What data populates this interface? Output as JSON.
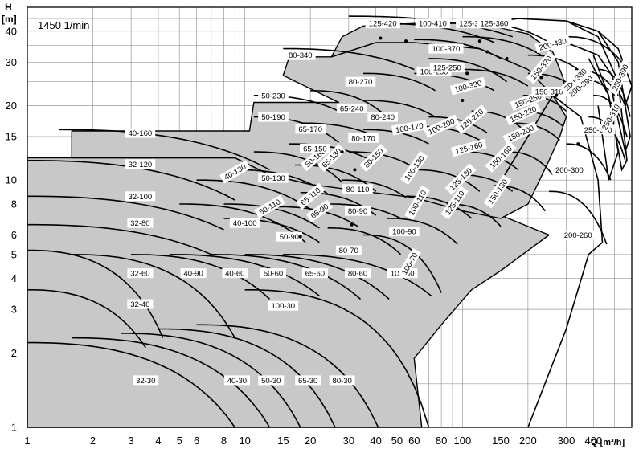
{
  "speed_label": "1450 1/min",
  "y_axis_title_1": "H",
  "y_axis_title_2": "[m]",
  "x_axis_title": "Q [m³/h]",
  "chart_data": {
    "type": "area",
    "title": "",
    "speed": "1450 1/min",
    "xlabel": "Q [m³/h]",
    "ylabel": "H [m]",
    "x_scale": "log",
    "y_scale": "log",
    "xlim": [
      1,
      600
    ],
    "ylim": [
      1,
      50
    ],
    "grid": true,
    "x_ticks": [
      1,
      2,
      3,
      4,
      5,
      6,
      8,
      10,
      15,
      20,
      30,
      40,
      50,
      60,
      80,
      100,
      150,
      200,
      300,
      400
    ],
    "x_tick_labels": [
      "1",
      "2",
      "3",
      "4",
      "5",
      "6",
      "8",
      "10",
      "15",
      "20",
      "30",
      "40",
      "50",
      "60",
      "80",
      "100",
      "150",
      "200",
      "300",
      "400"
    ],
    "y_ticks": [
      1,
      2,
      3,
      4,
      5,
      6,
      8,
      10,
      15,
      20,
      30,
      40
    ],
    "y_tick_labels": [
      "1",
      "2",
      "3",
      "4",
      "5",
      "6",
      "8",
      "10",
      "15",
      "20",
      "30",
      "40"
    ],
    "series": [
      {
        "name": "32-30",
        "q_range": [
          1,
          9
        ],
        "h_range": [
          1,
          2.2
        ]
      },
      {
        "name": "40-30",
        "q_range": [
          1.6,
          13
        ],
        "h_range": [
          1,
          2.3
        ]
      },
      {
        "name": "50-30",
        "q_range": [
          2.7,
          18
        ],
        "h_range": [
          1,
          2.4
        ]
      },
      {
        "name": "65-30",
        "q_range": [
          4,
          26
        ],
        "h_range": [
          1,
          2.5
        ]
      },
      {
        "name": "80-30",
        "q_range": [
          6,
          41
        ],
        "h_range": [
          1,
          2.6
        ]
      },
      {
        "name": "100-30",
        "q_range": [
          10,
          70
        ],
        "h_range": [
          1,
          3.6
        ]
      },
      {
        "name": "32-40",
        "q_range": [
          1,
          3.5
        ],
        "h_range": [
          2.1,
          3.6
        ]
      },
      {
        "name": "32-60",
        "q_range": [
          1,
          4.2
        ],
        "h_range": [
          2.3,
          5.2
        ]
      },
      {
        "name": "40-90",
        "q_range": [
          1.6,
          9
        ],
        "h_range": [
          2.3,
          5
        ]
      },
      {
        "name": "40-60",
        "q_range": [
          3,
          13
        ],
        "h_range": [
          3.3,
          5
        ]
      },
      {
        "name": "50-60",
        "q_range": [
          4.5,
          22
        ],
        "h_range": [
          3.4,
          5
        ]
      },
      {
        "name": "65-60",
        "q_range": [
          7,
          34
        ],
        "h_range": [
          3.3,
          5
        ]
      },
      {
        "name": "80-60",
        "q_range": [
          10,
          46
        ],
        "h_range": [
          3.3,
          5
        ]
      },
      {
        "name": "100-60",
        "q_range": [
          15,
          72
        ],
        "h_range": [
          3.4,
          5
        ]
      },
      {
        "name": "32-80",
        "q_range": [
          1,
          7
        ],
        "h_range": [
          5,
          6.6
        ]
      },
      {
        "name": "32-100",
        "q_range": [
          1,
          8
        ],
        "h_range": [
          6.3,
          8.6
        ]
      },
      {
        "name": "32-120",
        "q_range": [
          1,
          9
        ],
        "h_range": [
          8.3,
          12
        ]
      },
      {
        "name": "40-160",
        "q_range": [
          1.4,
          13
        ],
        "h_range": [
          11,
          16
        ]
      },
      {
        "name": "40-100",
        "q_range": [
          5,
          19
        ],
        "h_range": [
          5.6,
          8
        ]
      },
      {
        "name": "40-130",
        "q_range": [
          6,
          20
        ],
        "h_range": [
          7.6,
          10
        ]
      },
      {
        "name": "50-90",
        "q_range": [
          8,
          22
        ],
        "h_range": [
          5.6,
          7
        ]
      },
      {
        "name": "50-110",
        "q_range": [
          8,
          22
        ],
        "h_range": [
          6.4,
          8
        ]
      },
      {
        "name": "50-130",
        "q_range": [
          9,
          24
        ],
        "h_range": [
          8.8,
          11
        ]
      },
      {
        "name": "50-160",
        "q_range": [
          11,
          28
        ],
        "h_range": [
          9.8,
          13
        ]
      },
      {
        "name": "50-190",
        "q_range": [
          11,
          27
        ],
        "h_range": [
          14.2,
          18
        ]
      },
      {
        "name": "50-230",
        "q_range": [
          11,
          27
        ],
        "h_range": [
          19,
          22
        ]
      },
      {
        "name": "65-90",
        "q_range": [
          14,
          33
        ],
        "h_range": [
          6.5,
          7.8
        ]
      },
      {
        "name": "65-110",
        "q_range": [
          18,
          40
        ],
        "h_range": [
          7.2,
          8.9
        ]
      },
      {
        "name": "65-130",
        "q_range": [
          17,
          40
        ],
        "h_range": [
          9,
          11.5
        ]
      },
      {
        "name": "65-150",
        "q_range": [
          16,
          38
        ],
        "h_range": [
          12,
          14
        ]
      },
      {
        "name": "65-170",
        "q_range": [
          18,
          40
        ],
        "h_range": [
          15,
          17
        ]
      },
      {
        "name": "65-240",
        "q_range": [
          20,
          45
        ],
        "h_range": [
          18,
          23
        ]
      },
      {
        "name": "80-70",
        "q_range": [
          24,
          52
        ],
        "h_range": [
          5,
          6.4
        ]
      },
      {
        "name": "80-90",
        "q_range": [
          24,
          52
        ],
        "h_range": [
          7,
          8
        ]
      },
      {
        "name": "80-110",
        "q_range": [
          28,
          55
        ],
        "h_range": [
          8.5,
          10
        ]
      },
      {
        "name": "80-150",
        "q_range": [
          30,
          62
        ],
        "h_range": [
          11,
          13
        ]
      },
      {
        "name": "80-170",
        "q_range": [
          35,
          70
        ],
        "h_range": [
          14,
          16
        ]
      },
      {
        "name": "80-240",
        "q_range": [
          35,
          75
        ],
        "h_range": [
          18,
          21
        ]
      },
      {
        "name": "80-270",
        "q_range": [
          35,
          75
        ],
        "h_range": [
          23,
          27
        ]
      },
      {
        "name": "80-340",
        "q_range": [
          15,
          60
        ],
        "h_range": [
          28,
          34
        ]
      },
      {
        "name": "100-70",
        "q_range": [
          35,
          80
        ],
        "h_range": [
          3.5,
          6
        ]
      },
      {
        "name": "100-90",
        "q_range": [
          45,
          95
        ],
        "h_range": [
          5.5,
          7
        ]
      },
      {
        "name": "100-110",
        "q_range": [
          55,
          110
        ],
        "h_range": [
          7,
          8.6
        ]
      },
      {
        "name": "100-130",
        "q_range": [
          60,
          120
        ],
        "h_range": [
          9,
          11
        ]
      },
      {
        "name": "100-170",
        "q_range": [
          60,
          120
        ],
        "h_range": [
          14.5,
          16.5
        ]
      },
      {
        "name": "100-200",
        "q_range": [
          70,
          130
        ],
        "h_range": [
          15.5,
          18
        ]
      },
      {
        "name": "100-250",
        "q_range": [
          60,
          140
        ],
        "h_range": [
          23,
          27
        ]
      },
      {
        "name": "100-330",
        "q_range": [
          70,
          160
        ],
        "h_range": [
          25,
          31
        ]
      },
      {
        "name": "100-370",
        "q_range": [
          60,
          150
        ],
        "h_range": [
          31,
          37
        ]
      },
      {
        "name": "100-410",
        "q_range": [
          40,
          140
        ],
        "h_range": [
          36,
          43
        ]
      },
      {
        "name": "125-110",
        "q_range": [
          85,
          150
        ],
        "h_range": [
          6.5,
          8
        ]
      },
      {
        "name": "125-130",
        "q_range": [
          95,
          170
        ],
        "h_range": [
          9,
          10.5
        ]
      },
      {
        "name": "125-160",
        "q_range": [
          100,
          180
        ],
        "h_range": [
          11,
          13
        ]
      },
      {
        "name": "125-210",
        "q_range": [
          110,
          190
        ],
        "h_range": [
          16,
          19
        ]
      },
      {
        "name": "125-250",
        "q_range": [
          100,
          200
        ],
        "h_range": [
          24,
          28
        ]
      },
      {
        "name": "125-320",
        "q_range": [
          100,
          230
        ],
        "h_range": [
          32,
          38
        ]
      },
      {
        "name": "125-360",
        "q_range": [
          110,
          250
        ],
        "h_range": [
          36,
          43
        ]
      },
      {
        "name": "125-420",
        "q_range": [
          30,
          170
        ],
        "h_range": [
          38,
          46
        ]
      },
      {
        "name": "150-130",
        "q_range": [
          140,
          240
        ],
        "h_range": [
          7.5,
          9.5
        ]
      },
      {
        "name": "150-160",
        "q_range": [
          160,
          260
        ],
        "h_range": [
          10.5,
          13
        ]
      },
      {
        "name": "150-200",
        "q_range": [
          170,
          280
        ],
        "h_range": [
          14.5,
          17
        ]
      },
      {
        "name": "150-220",
        "q_range": [
          180,
          290
        ],
        "h_range": [
          16.5,
          19
        ]
      },
      {
        "name": "150-250",
        "q_range": [
          190,
          300
        ],
        "h_range": [
          19,
          22
        ]
      },
      {
        "name": "150-310",
        "q_range": [
          200,
          320
        ],
        "h_range": [
          24,
          27
        ]
      },
      {
        "name": "150-370",
        "q_range": [
          200,
          340
        ],
        "h_range": [
          28,
          32
        ]
      },
      {
        "name": "200-260",
        "q_range": [
          250,
          460
        ],
        "h_range": [
          5.5,
          9
        ]
      },
      {
        "name": "200-300",
        "q_range": [
          300,
          480
        ],
        "h_range": [
          10,
          14
        ]
      },
      {
        "name": "200-330",
        "q_range": [
          320,
          500
        ],
        "h_range": [
          22,
          26
        ]
      },
      {
        "name": "200-390",
        "q_range": [
          330,
          520
        ],
        "h_range": [
          22,
          28
        ]
      },
      {
        "name": "200-430",
        "q_range": [
          300,
          540
        ],
        "h_range": [
          30,
          38
        ]
      },
      {
        "name": "250-280",
        "q_range": [
          380,
          560
        ],
        "h_range": [
          12,
          18
        ]
      },
      {
        "name": "250-310",
        "q_range": [
          400,
          570
        ],
        "h_range": [
          15,
          22
        ]
      },
      {
        "name": "250-390",
        "q_range": [
          420,
          590
        ],
        "h_range": [
          18,
          28
        ]
      }
    ]
  }
}
